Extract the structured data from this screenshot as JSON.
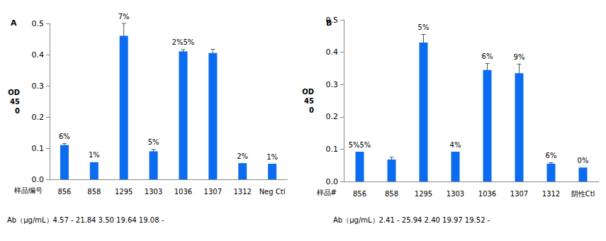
{
  "chart_data": [
    {
      "type": "bar",
      "title": "A",
      "x_label": "样品编号",
      "y_label": "OD\n45\n0",
      "categories": [
        "856",
        "858",
        "1295",
        "1303",
        "1036",
        "1307",
        "1312",
        "Neg Ctl"
      ],
      "values": [
        0.11,
        0.055,
        0.46,
        0.09,
        0.41,
        0.405,
        0.052,
        0.05
      ],
      "errors": [
        0.005,
        null,
        0.04,
        0.006,
        0.006,
        0.012,
        null,
        null
      ],
      "cv_labels": [
        "6%",
        "1%",
        "7%",
        "5%",
        "2%5%",
        null,
        "2%",
        "1%"
      ],
      "footnote": "Ab（μg/mL）4.57 - 21.84 3.50 19.64 19.08 -",
      "color": "#0b6cf0",
      "ylim": [
        0,
        0.5
      ],
      "yticks": [
        {
          "value": 0,
          "label": "0.0"
        },
        0.1,
        0.2,
        0.3,
        0.4,
        0.5
      ],
      "grid": false
    },
    {
      "type": "bar",
      "title": "B",
      "x_label": "样品#",
      "y_label": "OD\n45\n0",
      "categories": [
        "856",
        "858",
        "1295",
        "1303",
        "1036",
        "1307",
        "1312",
        "阴性Ctl"
      ],
      "values": [
        0.092,
        0.068,
        0.43,
        0.092,
        0.345,
        0.335,
        0.055,
        0.043
      ],
      "errors": [
        null,
        0.007,
        0.025,
        null,
        0.02,
        0.028,
        0.003,
        null
      ],
      "cv_labels": [
        "5%5%",
        null,
        "5%",
        "4%",
        "6%",
        "9%",
        "6%",
        "0%"
      ],
      "footnote": "Ab（μg/mL）2.41 - 25.94 2.40 19.97 19.52 -",
      "color": "#0b6cf0",
      "ylim": [
        0,
        0.5
      ],
      "yticks": [
        {
          "value": 0,
          "label": "0.0"
        },
        0.1,
        0.2,
        0.3,
        0.4,
        0.5
      ],
      "grid": false
    }
  ]
}
